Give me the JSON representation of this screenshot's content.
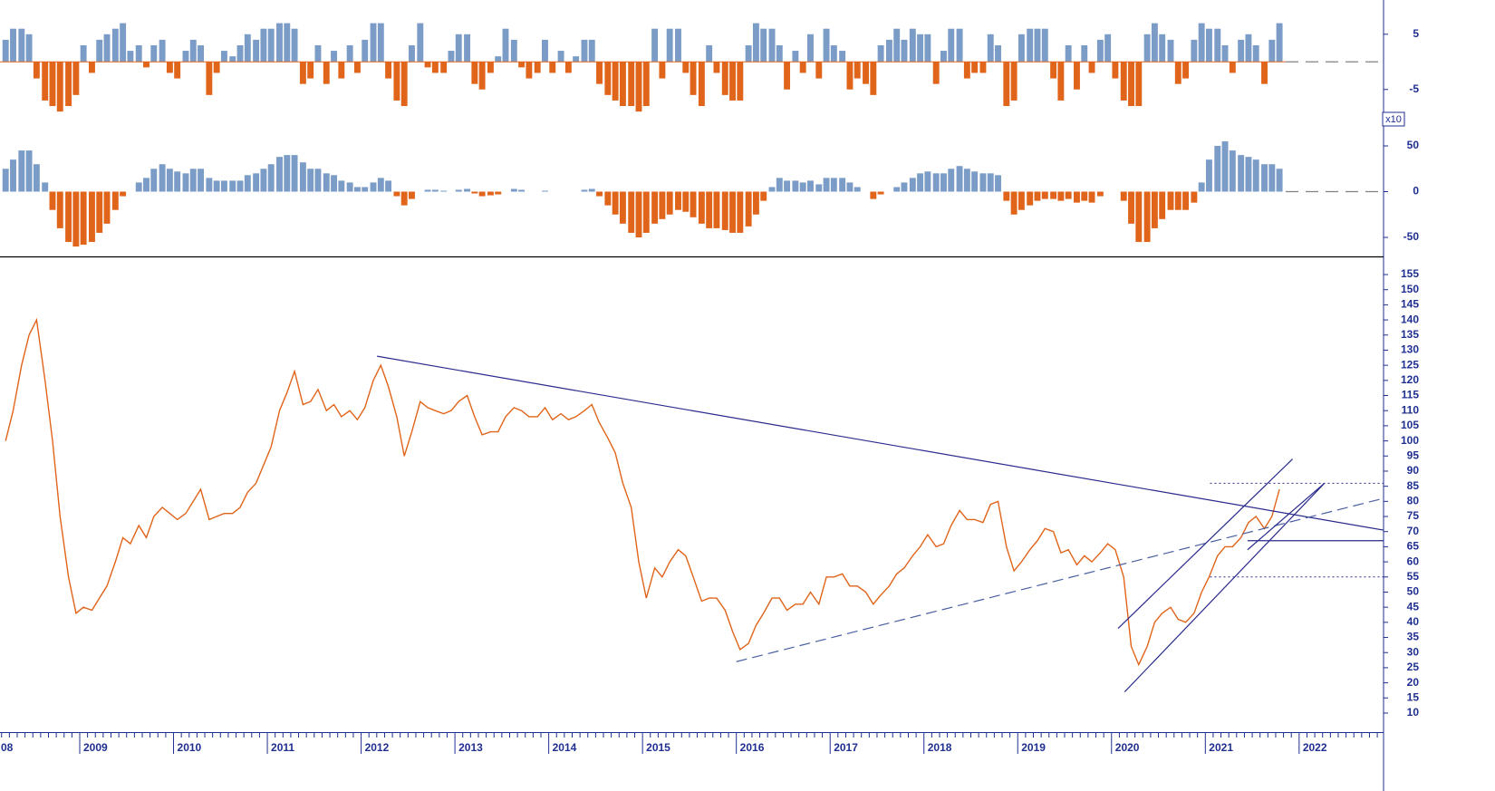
{
  "chart_data": [
    {
      "type": "line",
      "color": "#e0641a",
      "xlim": [
        2008.15,
        2022.9
      ],
      "ylim": [
        3.7,
        160.4
      ],
      "xticks": [
        {
          "value": 2008,
          "label": "08"
        },
        2009,
        2010,
        2011,
        2012,
        2013,
        2014,
        2015,
        2016,
        2017,
        2018,
        2019,
        2020,
        2021,
        2022
      ],
      "yticks": [
        10,
        15,
        20,
        25,
        30,
        35,
        40,
        45,
        50,
        55,
        60,
        65,
        70,
        75,
        80,
        85,
        90,
        95,
        100,
        105,
        110,
        115,
        120,
        125,
        130,
        135,
        140,
        145,
        150,
        155
      ],
      "x": [
        2008.21,
        2008.29,
        2008.38,
        2008.46,
        2008.54,
        2008.63,
        2008.71,
        2008.79,
        2008.88,
        2008.96,
        2009.04,
        2009.13,
        2009.21,
        2009.29,
        2009.38,
        2009.46,
        2009.54,
        2009.63,
        2009.71,
        2009.79,
        2009.88,
        2009.96,
        2010.04,
        2010.13,
        2010.21,
        2010.29,
        2010.38,
        2010.46,
        2010.54,
        2010.63,
        2010.71,
        2010.79,
        2010.88,
        2010.96,
        2011.04,
        2011.13,
        2011.21,
        2011.29,
        2011.38,
        2011.46,
        2011.54,
        2011.63,
        2011.71,
        2011.79,
        2011.88,
        2011.96,
        2012.04,
        2012.13,
        2012.21,
        2012.29,
        2012.38,
        2012.46,
        2012.54,
        2012.63,
        2012.71,
        2012.79,
        2012.88,
        2012.96,
        2013.04,
        2013.13,
        2013.21,
        2013.29,
        2013.38,
        2013.46,
        2013.54,
        2013.63,
        2013.71,
        2013.79,
        2013.88,
        2013.96,
        2014.04,
        2014.13,
        2014.21,
        2014.29,
        2014.38,
        2014.46,
        2014.54,
        2014.63,
        2014.71,
        2014.79,
        2014.88,
        2014.96,
        2015.04,
        2015.13,
        2015.21,
        2015.29,
        2015.38,
        2015.46,
        2015.54,
        2015.63,
        2015.71,
        2015.79,
        2015.88,
        2015.96,
        2016.04,
        2016.13,
        2016.21,
        2016.29,
        2016.38,
        2016.46,
        2016.54,
        2016.63,
        2016.71,
        2016.79,
        2016.88,
        2016.96,
        2017.04,
        2017.13,
        2017.21,
        2017.29,
        2017.38,
        2017.46,
        2017.54,
        2017.63,
        2017.71,
        2017.79,
        2017.88,
        2017.96,
        2018.04,
        2018.13,
        2018.21,
        2018.29,
        2018.38,
        2018.46,
        2018.54,
        2018.63,
        2018.71,
        2018.79,
        2018.88,
        2018.96,
        2019.04,
        2019.13,
        2019.21,
        2019.29,
        2019.38,
        2019.46,
        2019.54,
        2019.63,
        2019.71,
        2019.79,
        2019.88,
        2019.96,
        2020.04,
        2020.13,
        2020.21,
        2020.29,
        2020.38,
        2020.46,
        2020.54,
        2020.63,
        2020.71,
        2020.79,
        2020.88,
        2020.96,
        2021.04,
        2021.13,
        2021.21,
        2021.29,
        2021.38,
        2021.46,
        2021.54,
        2021.63,
        2021.71,
        2021.79
      ],
      "values": [
        100,
        110,
        125,
        135,
        140,
        120,
        100,
        75,
        55,
        43,
        45,
        44,
        48,
        52,
        60,
        68,
        66,
        72,
        68,
        75,
        78,
        76,
        74,
        76,
        80,
        84,
        74,
        75,
        76,
        76,
        78,
        83,
        86,
        92,
        98,
        110,
        116,
        123,
        112,
        113,
        117,
        110,
        112,
        108,
        110,
        107,
        111,
        120,
        125,
        118,
        108,
        95,
        103,
        113,
        111,
        110,
        109,
        110,
        113,
        115,
        108,
        102,
        103,
        103,
        108,
        111,
        110,
        108,
        108,
        111,
        107,
        109,
        107,
        108,
        110,
        112,
        106,
        101,
        96,
        86,
        78,
        60,
        48,
        58,
        55,
        60,
        64,
        62,
        55,
        47,
        48,
        48,
        44,
        37,
        31,
        33,
        39,
        43,
        48,
        48,
        44,
        46,
        46,
        50,
        46,
        55,
        55,
        56,
        52,
        52,
        50,
        46,
        49,
        52,
        56,
        58,
        62,
        65,
        69,
        65,
        66,
        72,
        77,
        74,
        74,
        73,
        79,
        80,
        65,
        57,
        60,
        64,
        67,
        71,
        70,
        63,
        64,
        59,
        62,
        60,
        63,
        66,
        64,
        55,
        32,
        26,
        32,
        40,
        43,
        45,
        41,
        40,
        43,
        50,
        55,
        62,
        65,
        65,
        68,
        73,
        75,
        71,
        75,
        84
      ],
      "line_color": "#2a2a8c",
      "trendlines": [
        {
          "x": [
            2012.17,
            2022.9
          ],
          "y": [
            128,
            70.5
          ],
          "style": "solid"
        },
        {
          "x": [
            2016.0,
            2022.9
          ],
          "y": [
            27,
            81
          ],
          "style": "dashed"
        },
        {
          "x": [
            2020.07,
            2021.93
          ],
          "y": [
            38,
            94
          ],
          "style": "solid"
        },
        {
          "x": [
            2020.14,
            2022.27
          ],
          "y": [
            17,
            86
          ],
          "style": "solid"
        },
        {
          "x": [
            2021.45,
            2022.27
          ],
          "y": [
            64,
            86
          ],
          "style": "solid"
        },
        {
          "x": [
            2021.05,
            2022.9
          ],
          "y": [
            86,
            86
          ],
          "style": "dotted"
        },
        {
          "x": [
            2021.05,
            2022.9
          ],
          "y": [
            55,
            55
          ],
          "style": "dotted"
        },
        {
          "x": [
            2021.45,
            2022.9
          ],
          "y": [
            67,
            67
          ],
          "style": "solid"
        }
      ]
    },
    {
      "type": "bar",
      "color": "#7a9cc6",
      "negative_color": "#e0641a",
      "xlim": [
        2008.15,
        2022.9
      ],
      "ylim": [
        -9.8,
        11.2
      ],
      "yticks": [
        -5,
        5
      ],
      "x": [
        2008.21,
        2008.29,
        2008.38,
        2008.46,
        2008.54,
        2008.63,
        2008.71,
        2008.79,
        2008.88,
        2008.96,
        2009.04,
        2009.13,
        2009.21,
        2009.29,
        2009.38,
        2009.46,
        2009.54,
        2009.63,
        2009.71,
        2009.79,
        2009.88,
        2009.96,
        2010.04,
        2010.13,
        2010.21,
        2010.29,
        2010.38,
        2010.46,
        2010.54,
        2010.63,
        2010.71,
        2010.79,
        2010.88,
        2010.96,
        2011.04,
        2011.13,
        2011.21,
        2011.29,
        2011.38,
        2011.46,
        2011.54,
        2011.63,
        2011.71,
        2011.79,
        2011.88,
        2011.96,
        2012.04,
        2012.13,
        2012.21,
        2012.29,
        2012.38,
        2012.46,
        2012.54,
        2012.63,
        2012.71,
        2012.79,
        2012.88,
        2012.96,
        2013.04,
        2013.13,
        2013.21,
        2013.29,
        2013.38,
        2013.46,
        2013.54,
        2013.63,
        2013.71,
        2013.79,
        2013.88,
        2013.96,
        2014.04,
        2014.13,
        2014.21,
        2014.29,
        2014.38,
        2014.46,
        2014.54,
        2014.63,
        2014.71,
        2014.79,
        2014.88,
        2014.96,
        2015.04,
        2015.13,
        2015.21,
        2015.29,
        2015.38,
        2015.46,
        2015.54,
        2015.63,
        2015.71,
        2015.79,
        2015.88,
        2015.96,
        2016.04,
        2016.13,
        2016.21,
        2016.29,
        2016.38,
        2016.46,
        2016.54,
        2016.63,
        2016.71,
        2016.79,
        2016.88,
        2016.96,
        2017.04,
        2017.13,
        2017.21,
        2017.29,
        2017.38,
        2017.46,
        2017.54,
        2017.63,
        2017.71,
        2017.79,
        2017.88,
        2017.96,
        2018.04,
        2018.13,
        2018.21,
        2018.29,
        2018.38,
        2018.46,
        2018.54,
        2018.63,
        2018.71,
        2018.79,
        2018.88,
        2018.96,
        2019.04,
        2019.13,
        2019.21,
        2019.29,
        2019.38,
        2019.46,
        2019.54,
        2019.63,
        2019.71,
        2019.79,
        2019.88,
        2019.96,
        2020.04,
        2020.13,
        2020.21,
        2020.29,
        2020.38,
        2020.46,
        2020.54,
        2020.63,
        2020.71,
        2020.79,
        2020.88,
        2020.96,
        2021.04,
        2021.13,
        2021.21,
        2021.29,
        2021.38,
        2021.46,
        2021.54,
        2021.63,
        2021.71,
        2021.79
      ],
      "values": [
        4,
        6,
        6,
        5,
        -3,
        -7,
        -8,
        -9,
        -8,
        -6,
        3,
        -2,
        4,
        5,
        6,
        7,
        2,
        3,
        -1,
        3,
        4,
        -2,
        -3,
        2,
        4,
        3,
        -6,
        -2,
        2,
        1,
        3,
        5,
        4,
        6,
        6,
        7,
        7,
        6,
        -4,
        -3,
        3,
        -4,
        2,
        -3,
        3,
        -2,
        4,
        7,
        7,
        -3,
        -7,
        -8,
        3,
        7,
        -1,
        -2,
        -2,
        2,
        5,
        5,
        -4,
        -5,
        -2,
        1,
        6,
        4,
        -1,
        -3,
        -2,
        4,
        -2,
        2,
        -2,
        1,
        4,
        4,
        -4,
        -6,
        -7,
        -8,
        -8,
        -9,
        -8,
        6,
        -3,
        6,
        6,
        -2,
        -6,
        -8,
        3,
        -2,
        -6,
        -7,
        -7,
        3,
        7,
        6,
        6,
        3,
        -5,
        2,
        -2,
        5,
        -3,
        6,
        3,
        2,
        -5,
        -3,
        -4,
        -6,
        3,
        4,
        6,
        4,
        6,
        5,
        5,
        -4,
        2,
        6,
        6,
        -3,
        -2,
        -2,
        5,
        3,
        -8,
        -7,
        5,
        6,
        6,
        6,
        -3,
        -7,
        3,
        -5,
        3,
        -2,
        4,
        5,
        -3,
        -7,
        -8,
        -8,
        5,
        7,
        5,
        4,
        -4,
        -3,
        4,
        7,
        6,
        6,
        3,
        -2,
        4,
        5,
        3,
        -4,
        4,
        7
      ]
    },
    {
      "type": "bar",
      "color": "#7a9cc6",
      "negative_color": "#e0641a",
      "multiplier_label": "x10",
      "xlim": [
        2008.15,
        2022.9
      ],
      "ylim": [
        -70.8,
        82.7
      ],
      "yticks": [
        -50,
        0,
        50
      ],
      "x": [
        2008.21,
        2008.29,
        2008.38,
        2008.46,
        2008.54,
        2008.63,
        2008.71,
        2008.79,
        2008.88,
        2008.96,
        2009.04,
        2009.13,
        2009.21,
        2009.29,
        2009.38,
        2009.46,
        2009.54,
        2009.63,
        2009.71,
        2009.79,
        2009.88,
        2009.96,
        2010.04,
        2010.13,
        2010.21,
        2010.29,
        2010.38,
        2010.46,
        2010.54,
        2010.63,
        2010.71,
        2010.79,
        2010.88,
        2010.96,
        2011.04,
        2011.13,
        2011.21,
        2011.29,
        2011.38,
        2011.46,
        2011.54,
        2011.63,
        2011.71,
        2011.79,
        2011.88,
        2011.96,
        2012.04,
        2012.13,
        2012.21,
        2012.29,
        2012.38,
        2012.46,
        2012.54,
        2012.63,
        2012.71,
        2012.79,
        2012.88,
        2012.96,
        2013.04,
        2013.13,
        2013.21,
        2013.29,
        2013.38,
        2013.46,
        2013.54,
        2013.63,
        2013.71,
        2013.79,
        2013.88,
        2013.96,
        2014.04,
        2014.13,
        2014.21,
        2014.29,
        2014.38,
        2014.46,
        2014.54,
        2014.63,
        2014.71,
        2014.79,
        2014.88,
        2014.96,
        2015.04,
        2015.13,
        2015.21,
        2015.29,
        2015.38,
        2015.46,
        2015.54,
        2015.63,
        2015.71,
        2015.79,
        2015.88,
        2015.96,
        2016.04,
        2016.13,
        2016.21,
        2016.29,
        2016.38,
        2016.46,
        2016.54,
        2016.63,
        2016.71,
        2016.79,
        2016.88,
        2016.96,
        2017.04,
        2017.13,
        2017.21,
        2017.29,
        2017.38,
        2017.46,
        2017.54,
        2017.63,
        2017.71,
        2017.79,
        2017.88,
        2017.96,
        2018.04,
        2018.13,
        2018.21,
        2018.29,
        2018.38,
        2018.46,
        2018.54,
        2018.63,
        2018.71,
        2018.79,
        2018.88,
        2018.96,
        2019.04,
        2019.13,
        2019.21,
        2019.29,
        2019.38,
        2019.46,
        2019.54,
        2019.63,
        2019.71,
        2019.79,
        2019.88,
        2019.96,
        2020.04,
        2020.13,
        2020.21,
        2020.29,
        2020.38,
        2020.46,
        2020.54,
        2020.63,
        2020.71,
        2020.79,
        2020.88,
        2020.96,
        2021.04,
        2021.13,
        2021.21,
        2021.29,
        2021.38,
        2021.46,
        2021.54,
        2021.63,
        2021.71,
        2021.79
      ],
      "values": [
        25,
        35,
        45,
        45,
        30,
        10,
        -20,
        -40,
        -55,
        -60,
        -58,
        -55,
        -45,
        -35,
        -20,
        -5,
        0,
        10,
        15,
        25,
        30,
        25,
        22,
        20,
        25,
        25,
        15,
        12,
        12,
        12,
        12,
        18,
        20,
        25,
        30,
        38,
        40,
        40,
        32,
        25,
        25,
        20,
        18,
        12,
        10,
        5,
        5,
        10,
        15,
        12,
        -5,
        -15,
        -8,
        0,
        2,
        2,
        1,
        0,
        2,
        3,
        -2,
        -5,
        -4,
        -3,
        0,
        3,
        2,
        0,
        0,
        1,
        0,
        0,
        0,
        0,
        2,
        3,
        -5,
        -15,
        -25,
        -35,
        -45,
        -50,
        -45,
        -35,
        -30,
        -25,
        -20,
        -22,
        -28,
        -35,
        -40,
        -40,
        -42,
        -45,
        -45,
        -38,
        -25,
        -10,
        5,
        15,
        12,
        12,
        10,
        12,
        8,
        15,
        15,
        15,
        10,
        5,
        0,
        -8,
        -3,
        0,
        5,
        10,
        15,
        20,
        22,
        20,
        20,
        25,
        28,
        25,
        22,
        20,
        20,
        18,
        -10,
        -25,
        -20,
        -15,
        -10,
        -8,
        -8,
        -10,
        -8,
        -12,
        -10,
        -12,
        -5,
        0,
        0,
        -10,
        -35,
        -55,
        -55,
        -40,
        -30,
        -20,
        -20,
        -20,
        -12,
        10,
        35,
        50,
        55,
        45,
        40,
        38,
        35,
        30,
        30,
        25
      ]
    }
  ]
}
